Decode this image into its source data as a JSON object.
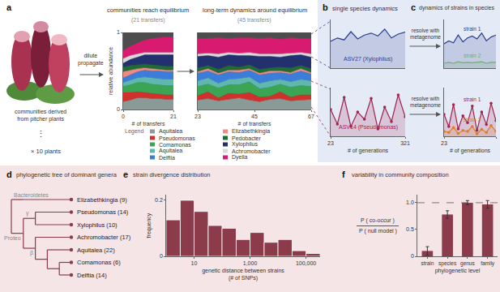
{
  "panels": {
    "a": {
      "label": "a",
      "source_text": [
        "communities derived",
        "from pitcher plants"
      ],
      "ellipsis": "⋮",
      "replicates": "× 10 plants",
      "arrow_text": [
        "dilute",
        "propagate"
      ],
      "legend_title": "Legend"
    },
    "b": {
      "label": "b",
      "title": "single species dynamics"
    },
    "c": {
      "label": "c",
      "title": "dynamics of strains in species",
      "arrow_texts": [
        [
          "resolve with",
          "metagenome"
        ],
        [
          "resolve with",
          "metagenome"
        ]
      ]
    },
    "d": {
      "label": "d",
      "title": "phylogenetic tree of dominant genera",
      "tree": {
        "children": [
          {
            "label": "Bacteroidetes",
            "children": [
              {
                "label": "Elizabethkingia (9)"
              }
            ]
          },
          {
            "label": "Proteo",
            "children": [
              {
                "label": "γ",
                "children": [
                  {
                    "label": "Pseudomonas (14)"
                  },
                  {
                    "label": "Xylophilus (10)"
                  }
                ]
              },
              {
                "label": "β",
                "children": [
                  {
                    "label": "Achromobacter (17)"
                  },
                  {
                    "children": [
                      {
                        "label": "Aquitalea (22)"
                      },
                      {
                        "children": [
                          {
                            "label": "Comamonas (6)"
                          },
                          {
                            "label": "Delftia (14)"
                          }
                        ]
                      }
                    ]
                  }
                ]
              }
            ]
          }
        ]
      }
    },
    "e": {
      "label": "e"
    },
    "f": {
      "label": "f"
    }
  },
  "chart_data": [
    {
      "type": "area",
      "stacked": true,
      "title": "communities reach equilibrium",
      "subtitle": "(21 transfers)",
      "x": [
        0,
        3,
        6,
        9,
        12,
        15,
        18,
        21
      ],
      "xlim": [
        0,
        21
      ],
      "xticks": [
        0,
        21
      ],
      "ylim": [
        0,
        1
      ],
      "yticks": [
        0,
        1
      ],
      "xlabel": "# of transfers",
      "ylabel": "relative abundance",
      "series": [
        {
          "name": "Aquitalea",
          "color": "#8a9a96",
          "values": [
            0.1,
            0.12,
            0.15,
            0.15,
            0.14,
            0.14,
            0.13,
            0.13
          ]
        },
        {
          "name": "Pseudomonas",
          "color": "#d0312d",
          "values": [
            0.12,
            0.1,
            0.08,
            0.07,
            0.07,
            0.06,
            0.06,
            0.06
          ]
        },
        {
          "name": "Comamonas",
          "color": "#3aa655",
          "values": [
            0.08,
            0.1,
            0.12,
            0.13,
            0.12,
            0.12,
            0.12,
            0.12
          ]
        },
        {
          "name": "Aquitalea",
          "color": "#5fb8b0",
          "values": [
            0.05,
            0.06,
            0.06,
            0.07,
            0.08,
            0.08,
            0.08,
            0.08
          ]
        },
        {
          "name": "Delftia",
          "color": "#3b7dd8",
          "values": [
            0.06,
            0.07,
            0.08,
            0.09,
            0.09,
            0.1,
            0.1,
            0.1
          ]
        },
        {
          "name": "Elizabethkingia",
          "color": "#f08a80",
          "values": [
            0.08,
            0.06,
            0.04,
            0.03,
            0.03,
            0.02,
            0.02,
            0.02
          ]
        },
        {
          "name": "Pedobacter",
          "color": "#1f6b35",
          "values": [
            0.06,
            0.06,
            0.05,
            0.05,
            0.05,
            0.05,
            0.05,
            0.05
          ]
        },
        {
          "name": "Xylophilus",
          "color": "#22306e",
          "values": [
            0.05,
            0.08,
            0.1,
            0.12,
            0.13,
            0.14,
            0.15,
            0.15
          ]
        },
        {
          "name": "Achromobacter",
          "color": "#d9d9d9",
          "values": [
            0.06,
            0.05,
            0.04,
            0.03,
            0.03,
            0.03,
            0.03,
            0.03
          ]
        },
        {
          "name": "Dyella",
          "color": "#d81b70",
          "values": [
            0.1,
            0.12,
            0.14,
            0.16,
            0.18,
            0.19,
            0.2,
            0.2
          ]
        }
      ]
    },
    {
      "type": "area",
      "stacked": true,
      "title": "long-term dynamics around equilibrium",
      "subtitle": "(45 transfers)",
      "x": [
        23,
        27,
        31,
        35,
        39,
        43,
        47,
        51,
        55,
        59,
        63,
        67
      ],
      "xlim": [
        23,
        67
      ],
      "xticks": [
        23,
        45,
        67
      ],
      "ylim": [
        0,
        1
      ],
      "xlabel": "# of transfers",
      "tick_labels": "x",
      "series": [
        {
          "name": "Aquitalea",
          "color": "#8a9a96",
          "values": [
            0.12,
            0.14,
            0.11,
            0.13,
            0.15,
            0.12,
            0.1,
            0.13,
            0.14,
            0.11,
            0.12,
            0.13
          ]
        },
        {
          "name": "Pseudomonas",
          "color": "#d0312d",
          "values": [
            0.06,
            0.09,
            0.04,
            0.08,
            0.05,
            0.1,
            0.06,
            0.04,
            0.09,
            0.05,
            0.07,
            0.06
          ]
        },
        {
          "name": "Comamonas",
          "color": "#3aa655",
          "values": [
            0.12,
            0.1,
            0.13,
            0.11,
            0.12,
            0.14,
            0.11,
            0.12,
            0.1,
            0.13,
            0.12,
            0.11
          ]
        },
        {
          "name": "Aquitalea",
          "color": "#5fb8b0",
          "values": [
            0.07,
            0.08,
            0.06,
            0.07,
            0.08,
            0.06,
            0.07,
            0.08,
            0.06,
            0.07,
            0.08,
            0.07
          ]
        },
        {
          "name": "Delftia",
          "color": "#3b7dd8",
          "values": [
            0.1,
            0.09,
            0.11,
            0.1,
            0.08,
            0.09,
            0.11,
            0.1,
            0.09,
            0.1,
            0.11,
            0.09
          ]
        },
        {
          "name": "Elizabethkingia",
          "color": "#f08a80",
          "values": [
            0.02,
            0.03,
            0.02,
            0.02,
            0.03,
            0.02,
            0.02,
            0.03,
            0.02,
            0.02,
            0.03,
            0.02
          ]
        },
        {
          "name": "Pedobacter",
          "color": "#1f6b35",
          "values": [
            0.05,
            0.04,
            0.05,
            0.06,
            0.04,
            0.05,
            0.05,
            0.04,
            0.05,
            0.06,
            0.04,
            0.05
          ]
        },
        {
          "name": "Xylophilus",
          "color": "#22306e",
          "values": [
            0.15,
            0.13,
            0.16,
            0.14,
            0.15,
            0.12,
            0.17,
            0.15,
            0.13,
            0.16,
            0.14,
            0.15
          ]
        },
        {
          "name": "Achromobacter",
          "color": "#d9d9d9",
          "values": [
            0.03,
            0.03,
            0.04,
            0.03,
            0.03,
            0.04,
            0.03,
            0.03,
            0.04,
            0.03,
            0.03,
            0.04
          ]
        },
        {
          "name": "Dyella",
          "color": "#d81b70",
          "values": [
            0.2,
            0.19,
            0.21,
            0.18,
            0.2,
            0.19,
            0.2,
            0.21,
            0.19,
            0.2,
            0.18,
            0.2
          ]
        }
      ]
    },
    {
      "type": "line",
      "x": [
        23,
        50,
        77,
        104,
        131,
        158,
        185,
        212,
        239,
        266,
        293,
        321
      ],
      "xlim": [
        23,
        321
      ],
      "ylim": [
        0,
        1
      ],
      "tick_labels": false,
      "series": [
        {
          "name": "ASV27 (Xylophilus)",
          "color": "#2a3d8f",
          "values": [
            0.55,
            0.62,
            0.58,
            0.75,
            0.6,
            0.68,
            0.72,
            0.66,
            0.8,
            0.62,
            0.7,
            0.74
          ]
        }
      ]
    },
    {
      "type": "line",
      "x": [
        23,
        50,
        77,
        104,
        131,
        158,
        185,
        212,
        239,
        266,
        293,
        321
      ],
      "xlim": [
        23,
        321
      ],
      "xticks": [
        23,
        321
      ],
      "ylim": [
        0,
        1
      ],
      "xlabel": "# of generations",
      "tick_labels": "x",
      "series": [
        {
          "name": "ASV14 (Pseudomonas)",
          "color": "#a0244e",
          "marker": "circle",
          "values": [
            0.55,
            0.25,
            0.8,
            0.2,
            0.5,
            0.35,
            0.78,
            0.15,
            0.6,
            0.3,
            0.85,
            0.4
          ]
        }
      ]
    },
    {
      "type": "line",
      "x": [
        23,
        50,
        77,
        104,
        131,
        158,
        185,
        212,
        239,
        266,
        293,
        321
      ],
      "xlim": [
        23,
        321
      ],
      "ylim": [
        0,
        1
      ],
      "tick_labels": false,
      "series": [
        {
          "name": "strain 1",
          "color": "#2a3d8f",
          "values": [
            0.5,
            0.56,
            0.52,
            0.68,
            0.54,
            0.62,
            0.66,
            0.6,
            0.72,
            0.56,
            0.64,
            0.68
          ]
        },
        {
          "name": "strain 2",
          "color": "#6fae6e",
          "values": [
            0.1,
            0.12,
            0.1,
            0.13,
            0.11,
            0.12,
            0.11,
            0.12,
            0.13,
            0.1,
            0.12,
            0.12
          ]
        }
      ]
    },
    {
      "type": "line",
      "x": [
        23,
        50,
        77,
        104,
        131,
        158,
        185,
        212,
        239,
        266,
        293,
        321
      ],
      "xlim": [
        23,
        321
      ],
      "xticks": [
        23,
        321
      ],
      "ylim": [
        0,
        1
      ],
      "xlabel": "# of generations",
      "tick_labels": "x",
      "series": [
        {
          "name": "strain 1",
          "color": "#a0244e",
          "marker": "circle",
          "values": [
            0.45,
            0.2,
            0.65,
            0.15,
            0.42,
            0.28,
            0.62,
            0.12,
            0.5,
            0.24,
            0.68,
            0.32
          ]
        },
        {
          "name": "strain 2",
          "color": "#e07b2a",
          "marker": "circle",
          "values": [
            0.1,
            0.08,
            0.18,
            0.06,
            0.12,
            0.1,
            0.2,
            0.05,
            0.14,
            0.08,
            0.22,
            0.1
          ]
        }
      ]
    },
    {
      "type": "histogram",
      "title": "strain divergence distribution",
      "log": "x",
      "color": "#8c3b4a",
      "bins": [
        1,
        3.2,
        10,
        32,
        100,
        320,
        1000,
        3200,
        10000,
        32000,
        100000,
        320000
      ],
      "values": [
        0.13,
        0.2,
        0.16,
        0.11,
        0.1,
        0.06,
        0.085,
        0.05,
        0.06,
        0.02,
        0.01
      ],
      "xlim": [
        1,
        320000
      ],
      "xticks": [
        10,
        {
          "value": 1000,
          "label": "1,000"
        },
        {
          "value": 100000,
          "label": "100,000"
        }
      ],
      "ylim": [
        0,
        0.22
      ],
      "yticks": [
        0,
        0.2
      ],
      "xlabel": [
        "genetic distance between strains",
        "(# of SNPs)"
      ],
      "ylabel": "frequency"
    },
    {
      "type": "bar",
      "title": "variability in community composition",
      "color": "#8c3b4a",
      "categories": [
        "strain",
        "species",
        "genus",
        "family"
      ],
      "values": [
        0.1,
        0.78,
        1.0,
        0.97
      ],
      "errors": [
        0.08,
        0.07,
        0.04,
        0.07
      ],
      "ylim": [
        0,
        1.15
      ],
      "yticks": [
        0,
        0.5,
        {
          "value": 1,
          "label": "1.0"
        }
      ],
      "hline": 1,
      "xlabel": "phylogenetic level",
      "ylabel": {
        "numerator": "P ( co-occur )",
        "denominator": "P ( null model )"
      }
    }
  ]
}
